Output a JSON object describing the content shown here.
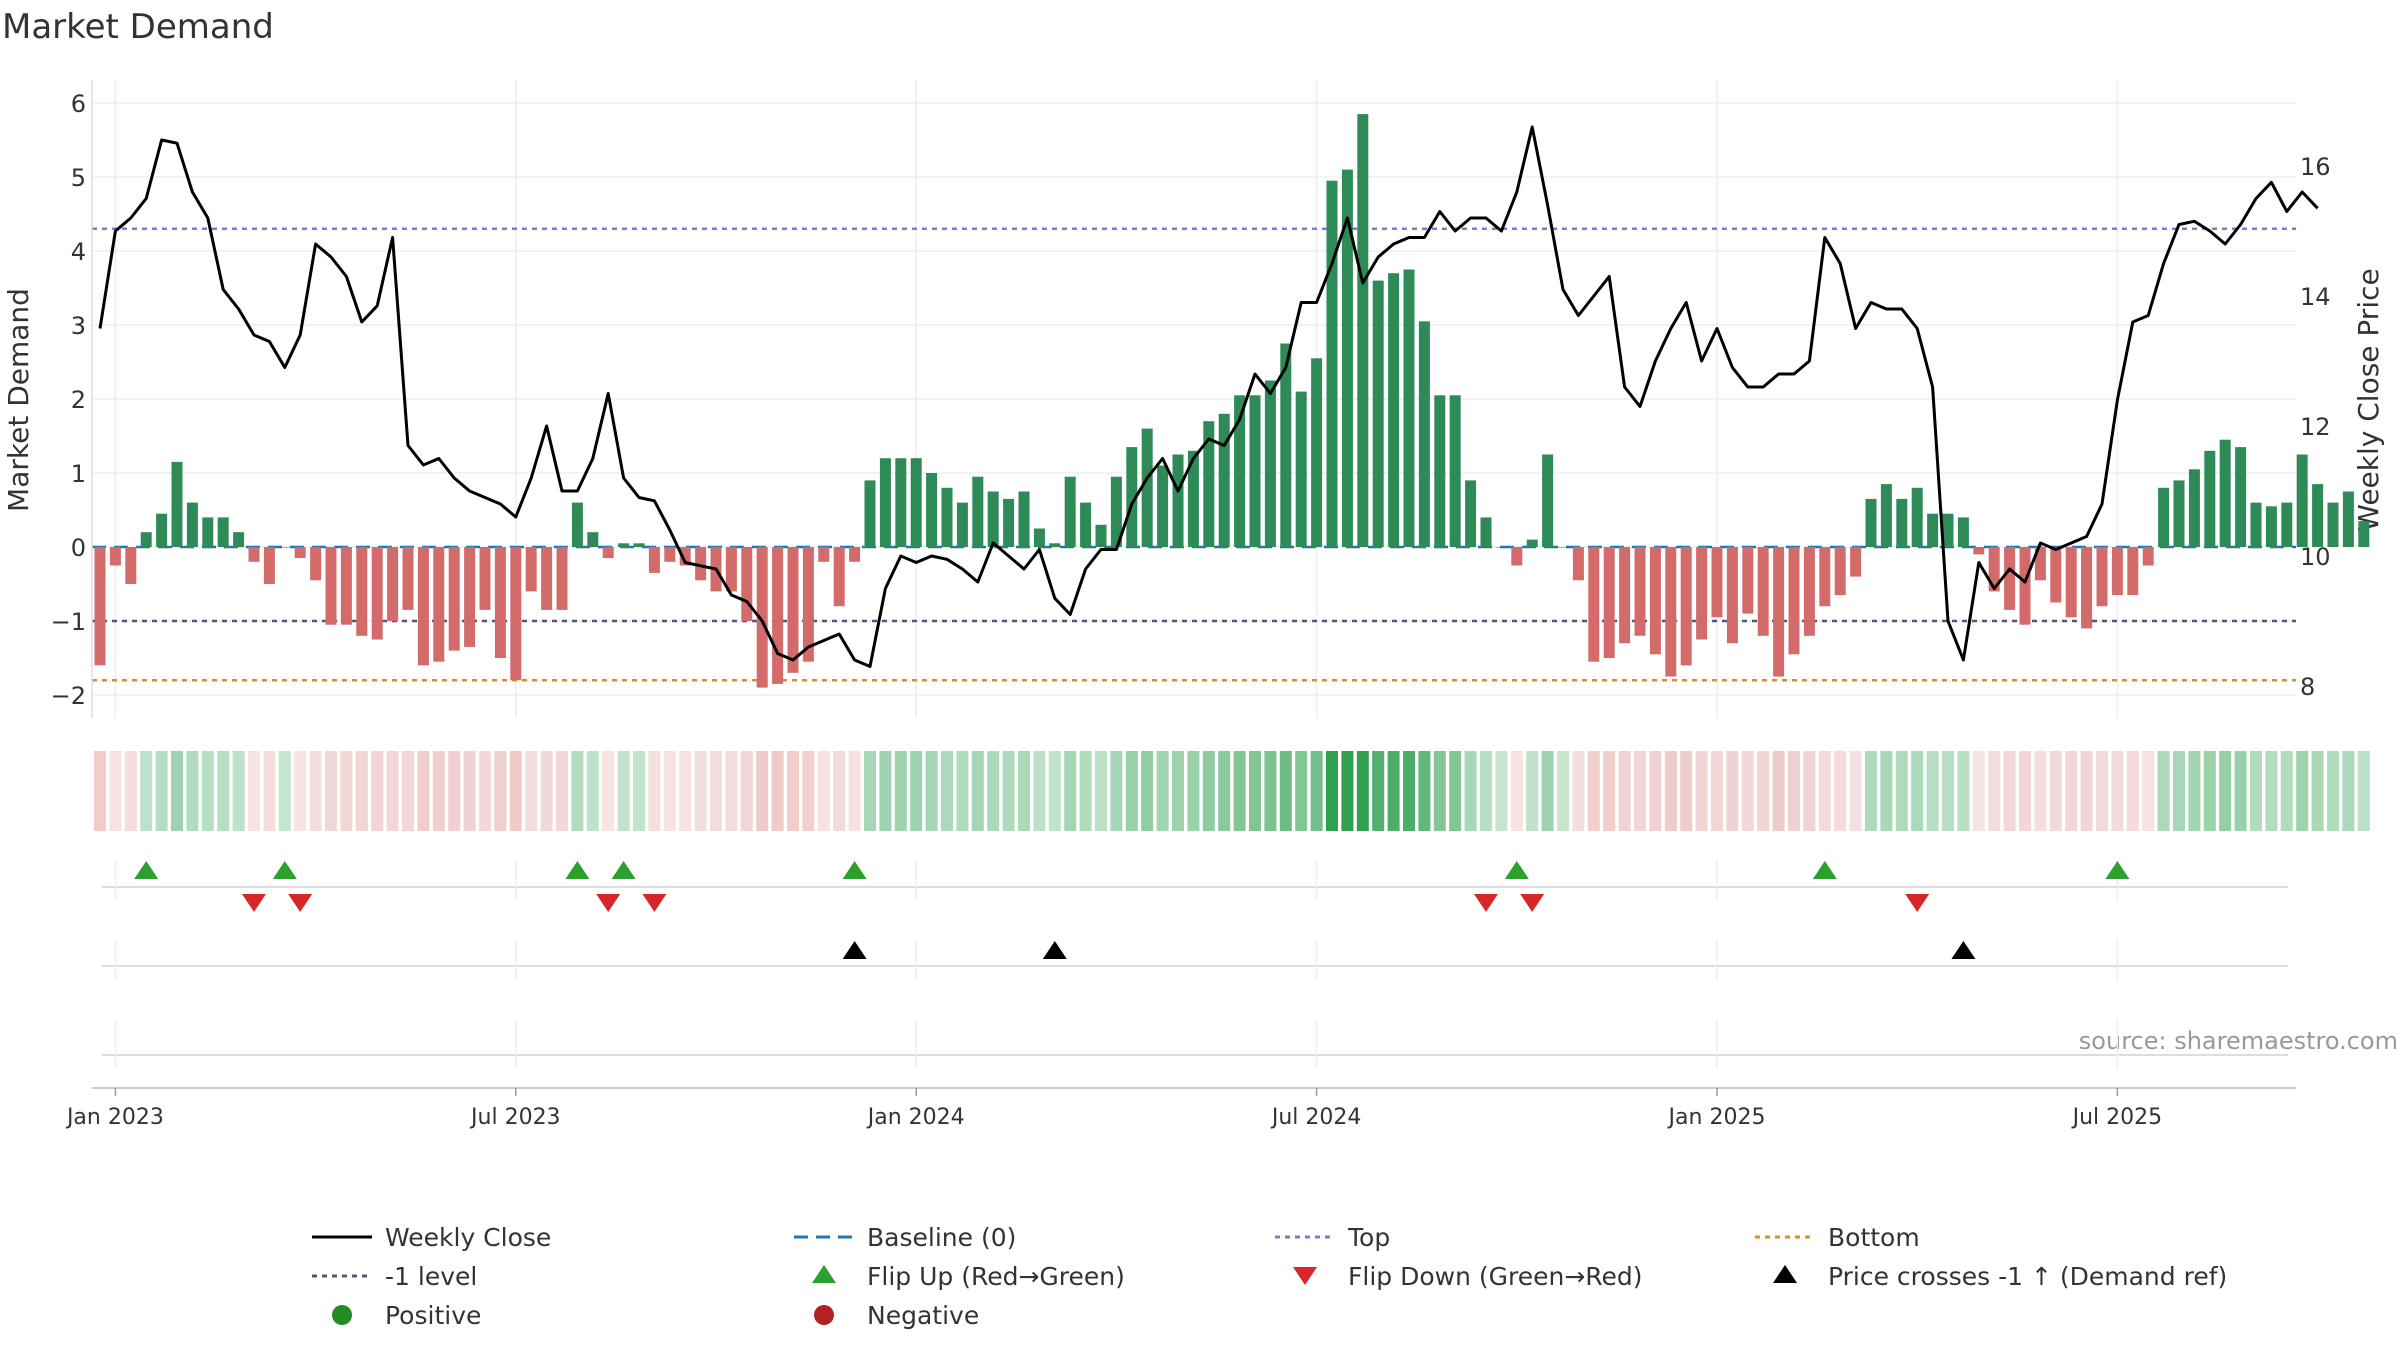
{
  "chart_data": {
    "type": "bar",
    "title": "Market Demand",
    "ylabel": "Market Demand",
    "y2label": "Weekly Close Price",
    "ylim": [
      -2.2,
      6.2
    ],
    "y2lim": [
      7.6,
      17.8
    ],
    "yticks": [
      -2,
      -1,
      0,
      1,
      2,
      3,
      4,
      5,
      6
    ],
    "yticklabels": [
      "−2",
      "−1",
      "0",
      "1",
      "2",
      "3",
      "4",
      "5",
      "6"
    ],
    "y2ticks": [
      8,
      10,
      12,
      14,
      16
    ],
    "xticks": [
      {
        "label": "Jan 2023",
        "week": 1
      },
      {
        "label": "Jul 2023",
        "week": 27
      },
      {
        "label": "Jan 2024",
        "week": 53
      },
      {
        "label": "Jul 2024",
        "week": 79
      },
      {
        "label": "Jan 2025",
        "week": 105
      },
      {
        "label": "Jul 2025",
        "week": 131
      }
    ],
    "series": [
      {
        "name": "Market Demand",
        "kind": "bar",
        "week_start": 0,
        "values": [
          -1.6,
          -0.25,
          -0.5,
          0.2,
          0.45,
          1.15,
          0.6,
          0.4,
          0.4,
          0.2,
          -0.2,
          -0.5,
          0.0,
          -0.15,
          -0.45,
          -1.05,
          -1.05,
          -1.2,
          -1.25,
          -1.0,
          -0.85,
          -1.6,
          -1.55,
          -1.4,
          -1.35,
          -0.85,
          -1.5,
          -1.8,
          -0.6,
          -0.85,
          -0.85,
          0.6,
          0.2,
          -0.15,
          0.05,
          0.05,
          -0.35,
          -0.2,
          -0.25,
          -0.45,
          -0.6,
          -0.6,
          -1.0,
          -1.9,
          -1.85,
          -1.7,
          -1.55,
          -0.2,
          -0.8,
          -0.2,
          0.9,
          1.2,
          1.2,
          1.2,
          1.0,
          0.8,
          0.6,
          0.95,
          0.75,
          0.65,
          0.75,
          0.25,
          0.05,
          0.95,
          0.6,
          0.3,
          0.95,
          1.35,
          1.6,
          1.1,
          1.25,
          1.3,
          1.7,
          1.8,
          2.05,
          2.05,
          2.25,
          2.75,
          2.1,
          2.55,
          4.95,
          5.1,
          5.85,
          3.6,
          3.7,
          3.75,
          3.05,
          2.05,
          2.05,
          0.9,
          0.4,
          0.0,
          -0.25,
          0.1,
          1.25,
          0.0,
          -0.45,
          -1.55,
          -1.5,
          -1.3,
          -1.2,
          -1.45,
          -1.75,
          -1.6,
          -1.25,
          -0.95,
          -1.3,
          -0.9,
          -1.2,
          -1.75,
          -1.45,
          -1.2,
          -0.8,
          -0.65,
          -0.4,
          0.65,
          0.85,
          0.65,
          0.8,
          0.45,
          0.45,
          0.4,
          -0.1,
          -0.6,
          -0.85,
          -1.05,
          -0.45,
          -0.75,
          -0.95,
          -1.1,
          -0.8,
          -0.65,
          -0.65,
          -0.25,
          0.8,
          0.9,
          1.05,
          1.3,
          1.45,
          1.35,
          0.6,
          0.55,
          0.6,
          1.25,
          0.85,
          0.6,
          0.75,
          0.35
        ]
      },
      {
        "name": "Weekly Close",
        "kind": "line",
        "axis": "right",
        "week_start": 0,
        "values": [
          13.5,
          15.0,
          15.2,
          15.5,
          16.4,
          16.35,
          15.6,
          15.2,
          14.1,
          13.8,
          13.4,
          13.3,
          12.9,
          13.4,
          14.8,
          14.6,
          14.3,
          13.6,
          13.85,
          14.9,
          11.7,
          11.4,
          11.5,
          11.2,
          11.0,
          10.9,
          10.8,
          10.6,
          11.2,
          12.0,
          11.0,
          11.0,
          11.5,
          12.5,
          11.2,
          10.9,
          10.85,
          10.4,
          9.9,
          9.85,
          9.8,
          9.4,
          9.3,
          9.0,
          8.5,
          8.4,
          8.6,
          8.7,
          8.8,
          8.4,
          8.3,
          9.5,
          10.0,
          9.9,
          10.0,
          9.95,
          9.8,
          9.6,
          10.2,
          10.0,
          9.8,
          10.1,
          9.35,
          9.1,
          9.8,
          10.1,
          10.1,
          10.8,
          11.2,
          11.5,
          11.0,
          11.5,
          11.8,
          11.7,
          12.1,
          12.8,
          12.5,
          12.9,
          13.9,
          13.9,
          14.5,
          15.2,
          14.2,
          14.6,
          14.8,
          14.9,
          14.9,
          15.3,
          15.0,
          15.2,
          15.2,
          15.0,
          15.6,
          16.6,
          15.4,
          14.1,
          13.7,
          14.0,
          14.3,
          12.6,
          12.3,
          13.0,
          13.5,
          13.9,
          13.0,
          13.5,
          12.9,
          12.6,
          12.6,
          12.8,
          12.8,
          13.0,
          14.9,
          14.5,
          13.5,
          13.9,
          13.8,
          13.8,
          13.5,
          12.6,
          9.0,
          8.4,
          9.9,
          9.5,
          9.8,
          9.6,
          10.2,
          10.1,
          10.2,
          10.3,
          10.8,
          12.4,
          13.6,
          13.7,
          14.5,
          15.1,
          15.15,
          15.0,
          14.8,
          15.1,
          15.5,
          15.75,
          15.3,
          15.6,
          15.35
        ]
      }
    ],
    "reference_lines": [
      {
        "name": "Baseline (0)",
        "value": 0,
        "color": "#1f77b4",
        "style": "dashed"
      },
      {
        "name": "Top",
        "value": 4.3,
        "color": "#7b7bd4",
        "style": "dotted"
      },
      {
        "name": "-1 level",
        "value": -1,
        "color": "#555577",
        "style": "dotted"
      },
      {
        "name": "Bottom",
        "value": -1.8,
        "color": "#e08a2c",
        "style": "dotted"
      }
    ],
    "events": {
      "flip_up_weeks": [
        3,
        12,
        31,
        34,
        49,
        92,
        112,
        131
      ],
      "flip_down_weeks": [
        10,
        13,
        33,
        36,
        90,
        93,
        118
      ],
      "price_cross_weeks": [
        49,
        62,
        121
      ]
    },
    "colors": {
      "positive": "#2e8b57",
      "negative": "#d36b6b",
      "line": "#000000",
      "flip_up": "#2ca02c",
      "flip_down": "#d62728",
      "cross": "#000000",
      "positive_marker": "#228b22",
      "negative_marker": "#b22222"
    },
    "legend": {
      "placement": "bottom",
      "entries": [
        {
          "label": "Weekly Close",
          "glyph": "line-solid",
          "color": "#000000"
        },
        {
          "label": "Baseline (0)",
          "glyph": "line-dashed",
          "color": "#1f77b4"
        },
        {
          "label": "Top",
          "glyph": "line-dotted",
          "color": "#7b7bd4"
        },
        {
          "label": "Bottom",
          "glyph": "line-dotted",
          "color": "#e08a2c"
        },
        {
          "label": "-1 level",
          "glyph": "line-dotted",
          "color": "#555577"
        },
        {
          "label": "Flip Up (Red→Green)",
          "glyph": "triangle-up",
          "color": "#2ca02c"
        },
        {
          "label": "Flip Down (Green→Red)",
          "glyph": "triangle-down",
          "color": "#d62728"
        },
        {
          "label": "Price crosses -1 ↑ (Demand ref)",
          "glyph": "triangle-up",
          "color": "#000000"
        },
        {
          "label": "Positive",
          "glyph": "circle",
          "color": "#228b22"
        },
        {
          "label": "Negative",
          "glyph": "circle",
          "color": "#b22222"
        }
      ]
    },
    "source": "source: sharemaestro.com",
    "grid": true
  }
}
